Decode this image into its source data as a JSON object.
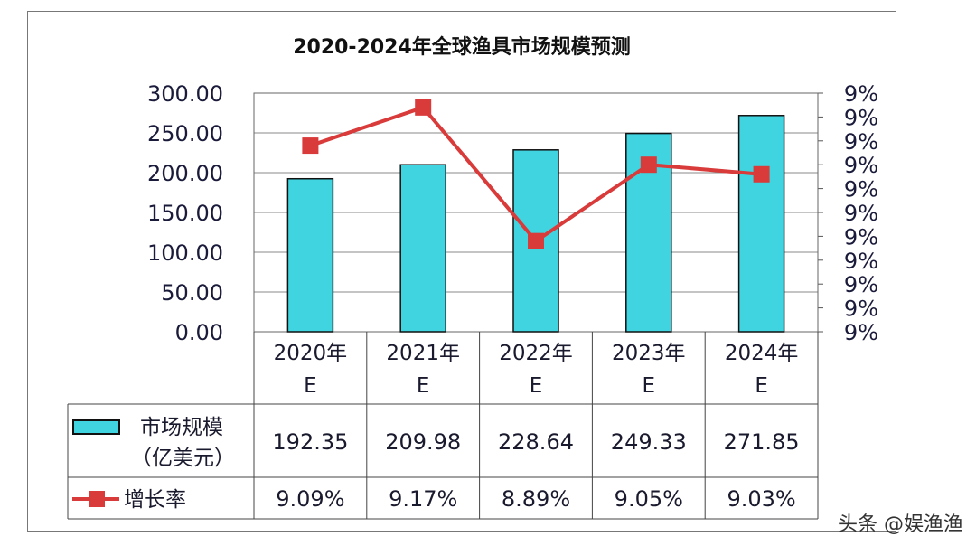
{
  "chart_data": {
    "type": "bar+line",
    "title": "2020-2024年全球渔具市场规模预测",
    "categories": [
      [
        "2020年",
        "E"
      ],
      [
        "2021年",
        "E"
      ],
      [
        "2022年",
        "E"
      ],
      [
        "2023年",
        "E"
      ],
      [
        "2024年",
        "E"
      ]
    ],
    "series": [
      {
        "name": "市场规模",
        "name_line2": "（亿美元）",
        "type": "bar",
        "axis": "left",
        "color": "#3fd4e0",
        "values": [
          192.35,
          209.98,
          228.64,
          249.33,
          271.85
        ],
        "labels": [
          "192.35",
          "209.98",
          "228.64",
          "249.33",
          "271.85"
        ]
      },
      {
        "name": "增长率",
        "type": "line",
        "axis": "right",
        "color": "#d93a3a",
        "values": [
          9.09,
          9.17,
          8.89,
          9.05,
          9.03
        ],
        "labels": [
          "9.09%",
          "9.17%",
          "8.89%",
          "9.05%",
          "9.03%"
        ]
      }
    ],
    "yleft": {
      "ylim": [
        0,
        300
      ],
      "ticks": [
        "0.00",
        "50.00",
        "100.00",
        "150.00",
        "200.00",
        "250.00",
        "300.00"
      ]
    },
    "yright": {
      "ylim": [
        8.7,
        9.2
      ],
      "ticks": [
        "9%",
        "9%",
        "9%",
        "9%",
        "9%",
        "9%",
        "9%",
        "9%",
        "9%",
        "9%",
        "9%"
      ]
    },
    "grid": true,
    "legend": "data-table"
  },
  "watermark": "头条 @娱渔渔"
}
